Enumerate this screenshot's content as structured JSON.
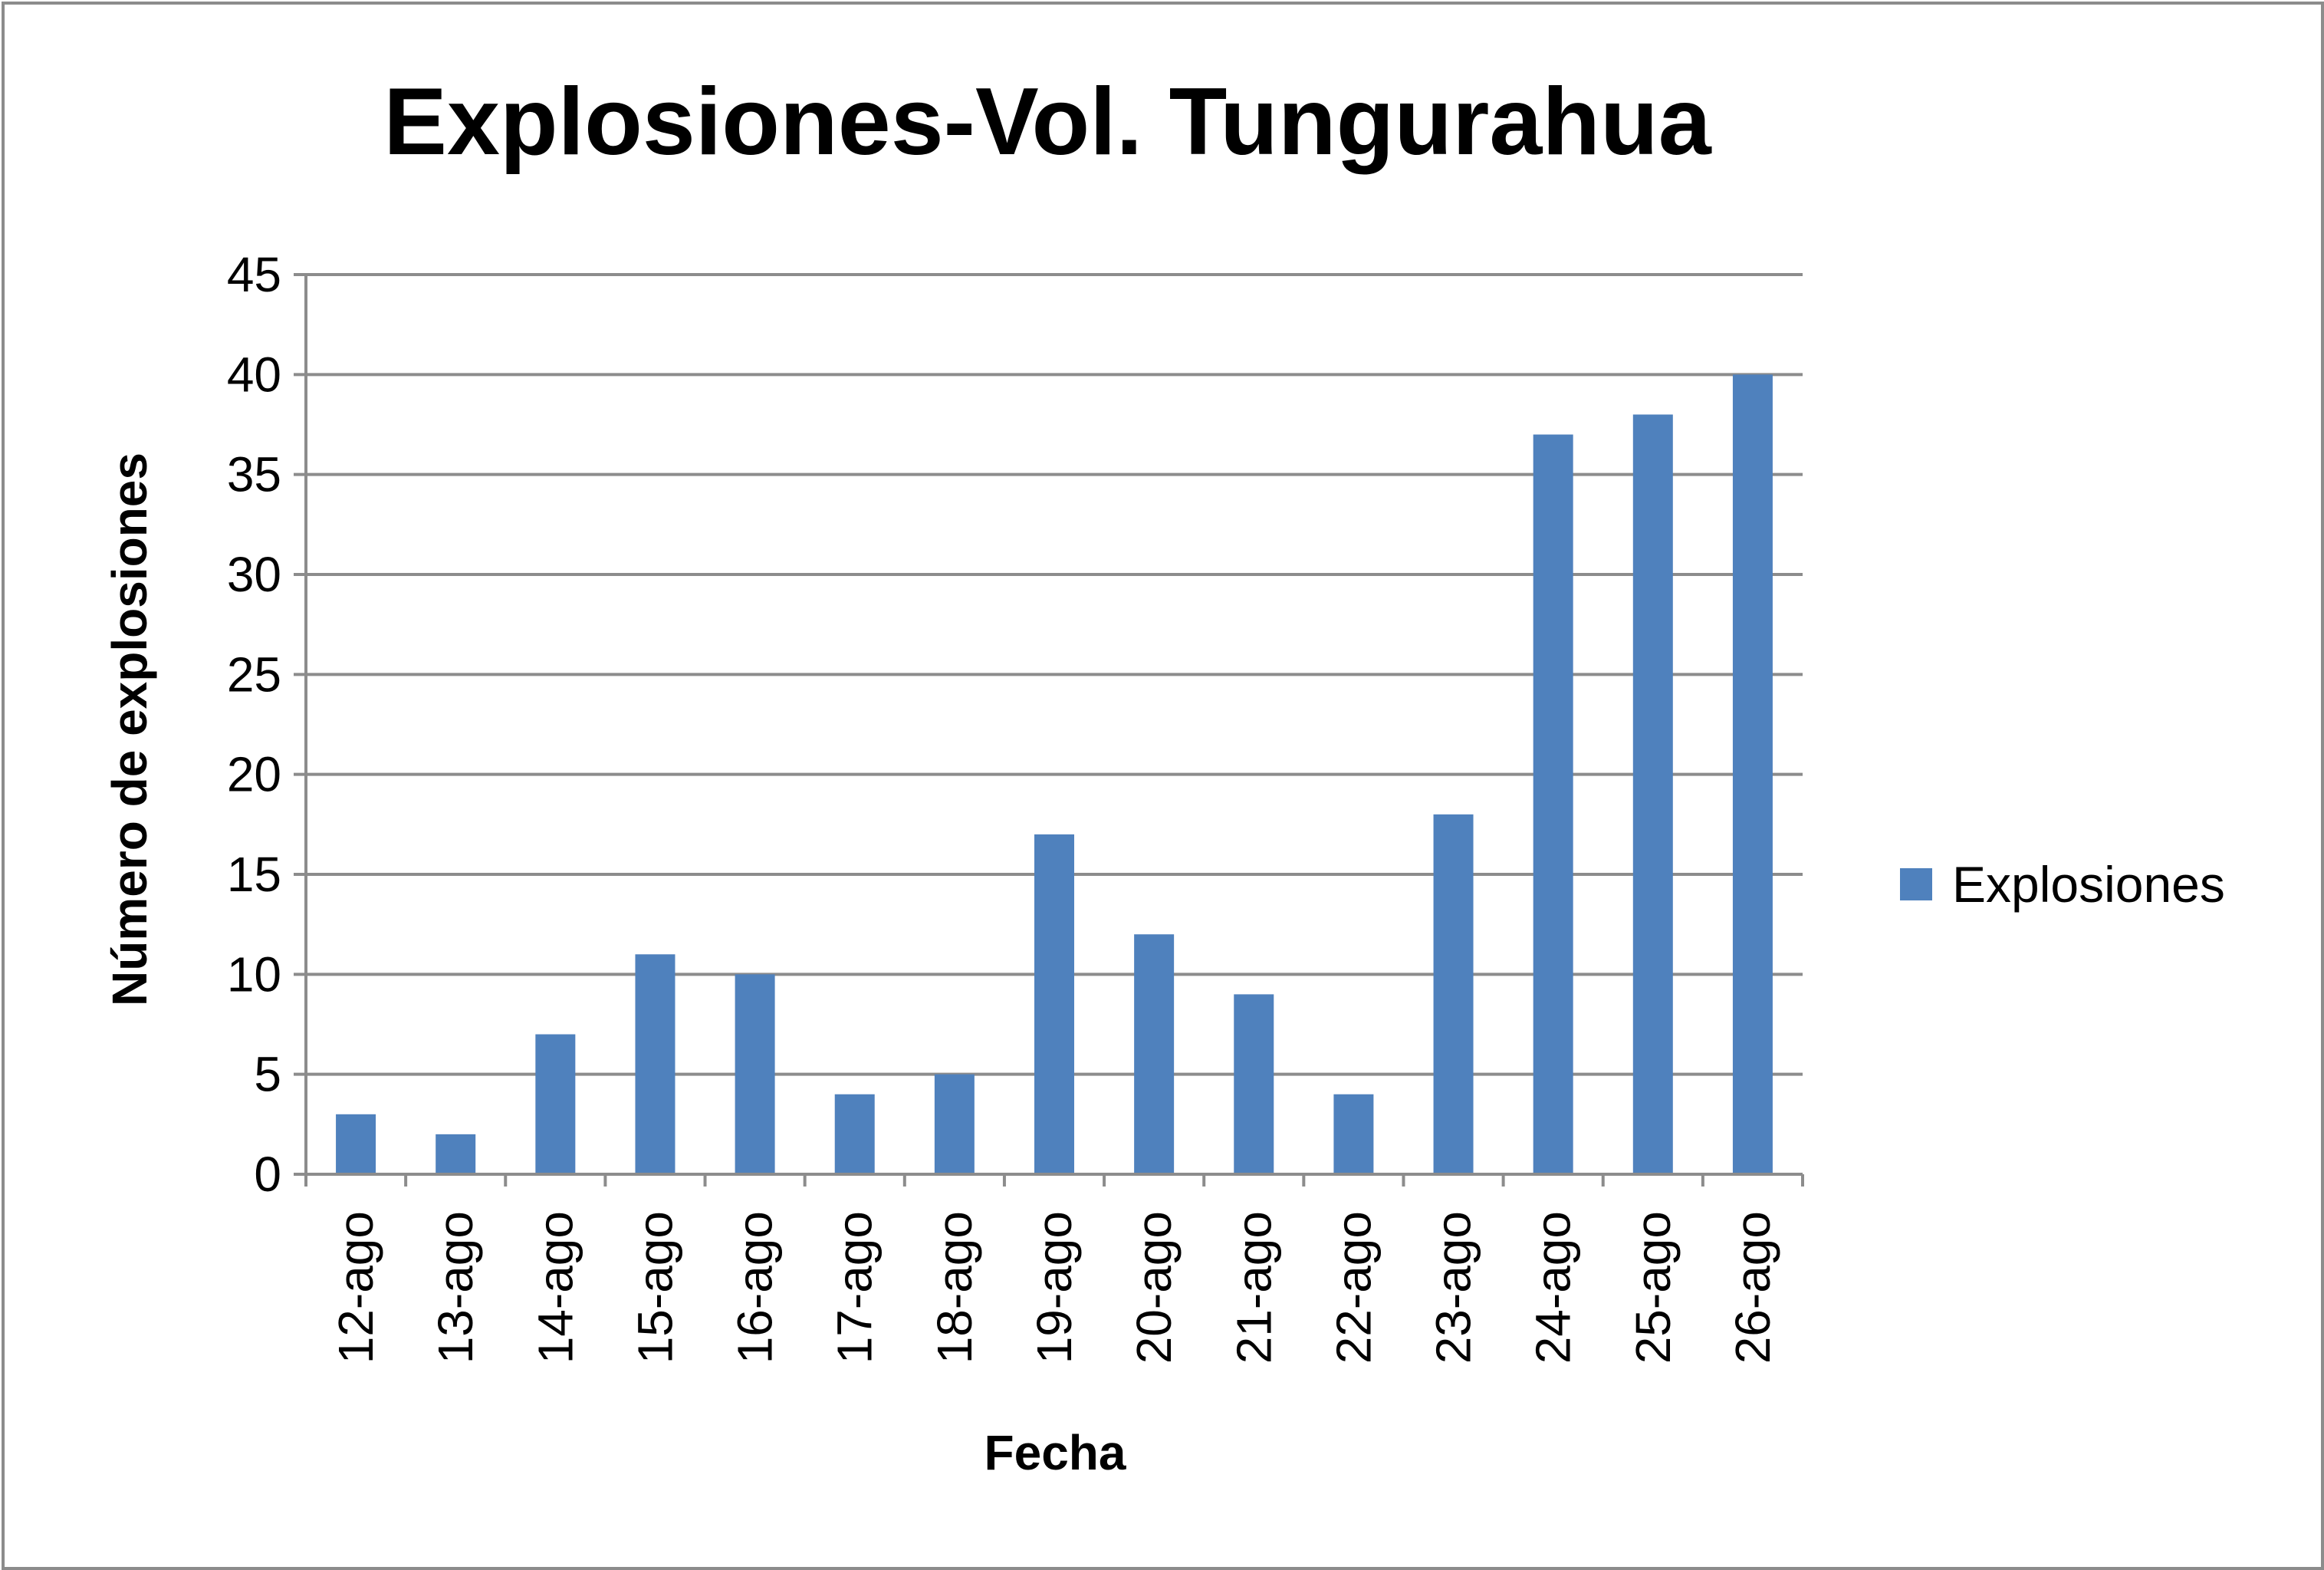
{
  "chart_data": {
    "type": "bar",
    "title": "Explosiones-Vol. Tungurahua",
    "xlabel": "Fecha",
    "ylabel": "Número de explosiones",
    "categories": [
      "12-ago",
      "13-ago",
      "14-ago",
      "15-ago",
      "16-ago",
      "17-ago",
      "18-ago",
      "19-ago",
      "20-ago",
      "21-ago",
      "22-ago",
      "23-ago",
      "24-ago",
      "25-ago",
      "26-ago"
    ],
    "series": [
      {
        "name": "Explosiones",
        "color": "#4f81bd",
        "values": [
          3,
          2,
          7,
          11,
          10,
          4,
          5,
          17,
          12,
          9,
          4,
          18,
          37,
          38,
          40
        ]
      }
    ],
    "ylim": [
      0,
      45
    ],
    "yticks": [
      "0",
      "5",
      "10",
      "15",
      "20",
      "25",
      "30",
      "35",
      "40",
      "45"
    ],
    "grid": true,
    "legend": "right",
    "colors": {
      "bar": "#4f81bd",
      "gridline": "#8c8c8c",
      "frame": "#8c8c8c"
    }
  }
}
